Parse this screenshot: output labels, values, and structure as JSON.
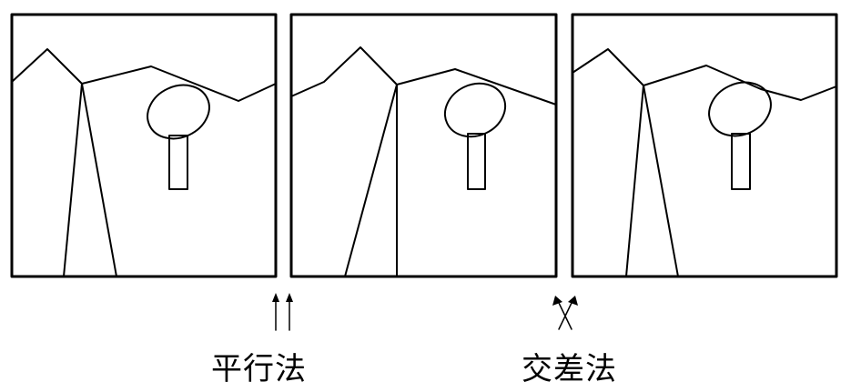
{
  "labels": {
    "parallel": "平行法",
    "cross": "交差法"
  },
  "panels": [
    {
      "name": "stereo-panel-left"
    },
    {
      "name": "stereo-panel-center"
    },
    {
      "name": "stereo-panel-right"
    }
  ],
  "icons": {
    "parallel": "parallel-arrows-icon",
    "cross": "crossed-arrows-icon"
  },
  "colors": {
    "line": "#000000",
    "background": "#ffffff"
  }
}
